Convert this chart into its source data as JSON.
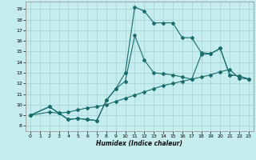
{
  "xlabel": "Humidex (Indice chaleur)",
  "background_color": "#c5eded",
  "grid_color": "#aad5d5",
  "line_color": "#1a6b6b",
  "xlim": [
    -0.5,
    23.5
  ],
  "ylim": [
    7.5,
    19.7
  ],
  "xticks": [
    0,
    1,
    2,
    3,
    4,
    5,
    6,
    7,
    8,
    9,
    10,
    11,
    12,
    13,
    14,
    15,
    16,
    17,
    18,
    19,
    20,
    21,
    22,
    23
  ],
  "yticks": [
    8,
    9,
    10,
    11,
    12,
    13,
    14,
    15,
    16,
    17,
    18,
    19
  ],
  "line1_x": [
    0,
    2,
    3,
    4,
    5,
    6,
    7,
    8,
    9,
    10,
    11,
    12,
    13,
    14,
    15,
    16,
    17,
    18,
    19,
    20,
    21,
    22,
    23
  ],
  "line1_y": [
    9.0,
    9.8,
    9.2,
    8.6,
    8.7,
    8.6,
    8.5,
    10.4,
    11.5,
    13.0,
    19.2,
    18.8,
    17.7,
    17.7,
    17.7,
    16.3,
    16.3,
    14.9,
    14.8,
    15.3,
    12.8,
    12.7,
    12.4
  ],
  "line2_x": [
    0,
    2,
    3,
    4,
    5,
    6,
    7,
    8,
    9,
    10,
    11,
    12,
    13,
    14,
    15,
    16,
    17,
    18,
    19,
    20,
    21,
    22,
    23
  ],
  "line2_y": [
    9.0,
    9.8,
    9.2,
    8.6,
    8.7,
    8.6,
    8.5,
    10.4,
    11.5,
    12.2,
    16.5,
    14.2,
    13.0,
    12.9,
    12.8,
    12.6,
    12.4,
    14.7,
    14.8,
    15.3,
    12.8,
    12.7,
    12.4
  ],
  "line3_x": [
    0,
    2,
    3,
    4,
    5,
    6,
    7,
    8,
    9,
    10,
    11,
    12,
    13,
    14,
    15,
    16,
    17,
    18,
    19,
    20,
    21,
    22,
    23
  ],
  "line3_y": [
    9.0,
    9.3,
    9.2,
    9.3,
    9.5,
    9.7,
    9.8,
    10.0,
    10.3,
    10.6,
    10.9,
    11.2,
    11.5,
    11.8,
    12.0,
    12.2,
    12.4,
    12.6,
    12.8,
    13.1,
    13.3,
    12.5,
    12.4
  ]
}
